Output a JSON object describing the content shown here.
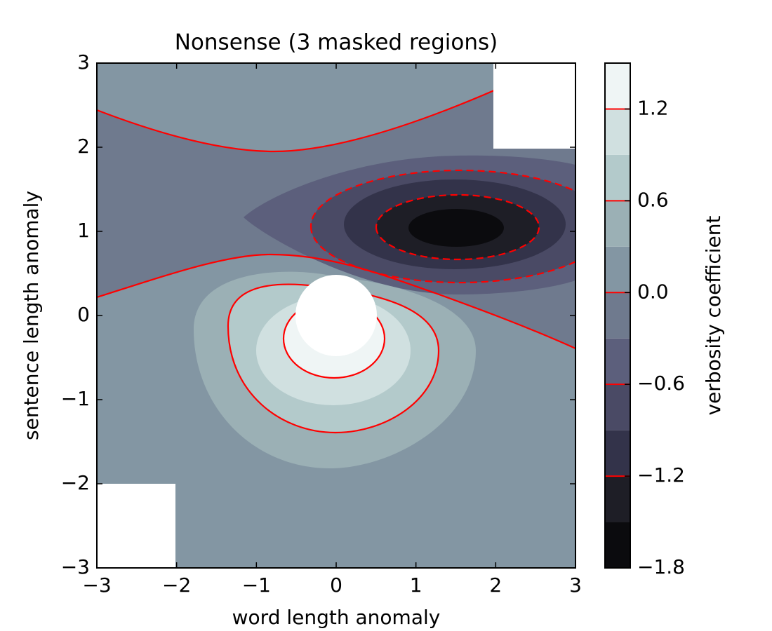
{
  "chart_data": {
    "type": "contourf",
    "title": "Nonsense (3 masked regions)",
    "xlabel": "word length anomaly",
    "ylabel": "sentence length anomaly",
    "xlim": [
      -3,
      3
    ],
    "ylim": [
      -3,
      3
    ],
    "xticks": [
      {
        "value": -3,
        "label": "−3"
      },
      {
        "value": -2,
        "label": "−2"
      },
      {
        "value": -1,
        "label": "−1"
      },
      0,
      1,
      2,
      3
    ],
    "yticks": [
      {
        "value": -3,
        "label": "−3"
      },
      {
        "value": -2,
        "label": "−2"
      },
      {
        "value": -1,
        "label": "−1"
      },
      0,
      1,
      2,
      3
    ],
    "levels": [
      -1.8,
      -1.5,
      -1.2,
      -0.9,
      -0.6,
      -0.3,
      0,
      0.3,
      0.6,
      0.9,
      1.2,
      1.5
    ],
    "colors": [
      "#0b0b0e",
      "#1e1e26",
      "#33334a",
      "#4a4a65",
      "#5c5f7c",
      "#6f7a8e",
      "#8396a3",
      "#9bb0b5",
      "#b3cacb",
      "#d0e0e0",
      "#eff5f5"
    ],
    "contour_levels": [
      -1.2,
      -0.6,
      0,
      0.6,
      1.2
    ],
    "contour_color": "#ff0000",
    "colorbar_label": "verbosity coefficient",
    "colorbar_ticks": [
      {
        "value": -1.8,
        "label": "−1.8"
      },
      {
        "value": -1.2,
        "label": "−1.2"
      },
      {
        "value": -0.6,
        "label": "−0.6"
      },
      {
        "value": 0,
        "label": "0.0"
      },
      {
        "value": 0.6,
        "label": "0.6"
      },
      {
        "value": 1.2,
        "label": "1.2"
      }
    ]
  }
}
